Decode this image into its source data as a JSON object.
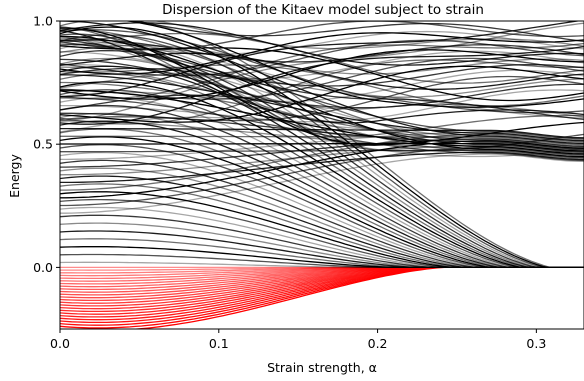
{
  "chart_data": {
    "type": "line",
    "title": "Dispersion of the Kitaev model subject to strain",
    "xlabel": "Strain strength, α",
    "ylabel": "Energy",
    "xlim": [
      0.0,
      0.33
    ],
    "ylim": [
      -0.25,
      1.0
    ],
    "xticks": [
      0.0,
      0.1,
      0.2,
      0.3
    ],
    "xtick_labels": [
      "0.0",
      "0.1",
      "0.2",
      "0.3"
    ],
    "yticks": [
      0.0,
      0.5,
      1.0
    ],
    "ytick_labels": [
      "0.0",
      "0.5",
      "1.0"
    ],
    "grid": false,
    "colors": {
      "positive_bands": "#000000",
      "negative_bands": "#ff0000"
    },
    "families": [
      {
        "kind": "landau_levels",
        "color": "#ff0000",
        "count": 24,
        "start_energy_range": [
          -0.25,
          0.0
        ],
        "end_energy": 0.0,
        "converge_alpha": 0.31
      },
      {
        "kind": "landau_levels",
        "color": "#000000",
        "count": 32,
        "start_energy_range": [
          0.02,
          0.98
        ],
        "end_energy": 0.0,
        "converge_alpha": 0.31
      },
      {
        "kind": "rising_bands",
        "color": "#000000",
        "count": 26,
        "start_energy_range": [
          0.22,
          1.0
        ],
        "end_energy_range": [
          0.46,
          0.56
        ],
        "plateau_alpha": 0.27
      },
      {
        "kind": "upper_bands",
        "color": "#000000",
        "count": 28,
        "start_energy_range": [
          0.55,
          1.0
        ],
        "end_energy_range": [
          0.68,
          1.0
        ]
      },
      {
        "kind": "crossing_bands",
        "color": "#000000",
        "count": 10,
        "start_energy_range": [
          0.9,
          1.0
        ],
        "end_energy_range": [
          0.5,
          0.7
        ]
      }
    ]
  }
}
